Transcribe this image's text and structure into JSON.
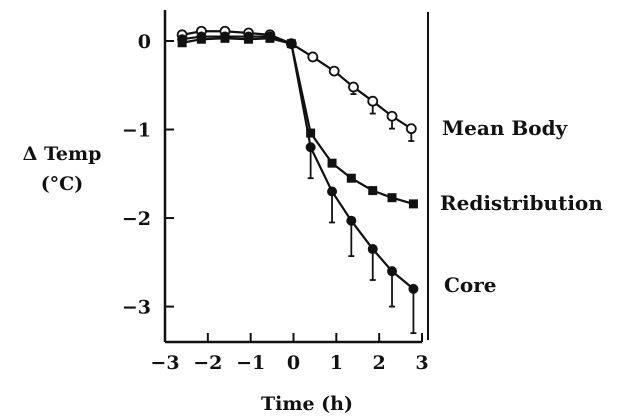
{
  "chart_data": {
    "type": "line",
    "title": "",
    "xlabel": "Time (h)",
    "ylabel": [
      "Δ Temp",
      "(°C)"
    ],
    "xlim": [
      -3,
      3
    ],
    "ylim": [
      -3.4,
      0.35
    ],
    "xticks": [
      -3,
      -2,
      -1,
      0,
      1,
      2,
      3
    ],
    "xtick_labels": [
      "−3",
      "−2",
      "−1",
      "0",
      "1",
      "2",
      "3"
    ],
    "yticks": [
      0,
      -1,
      -2,
      -3
    ],
    "ytick_labels": [
      "0",
      "−1",
      "−2",
      "−3"
    ],
    "grid": false,
    "legend": "direct labels right of plot",
    "series": [
      {
        "name": "Mean Body",
        "marker": "open-circle",
        "x": [
          -2.6,
          -2.15,
          -1.6,
          -1.05,
          -0.55,
          -0.05,
          0.45,
          0.95,
          1.4,
          1.85,
          2.3,
          2.75
        ],
        "y": [
          0.07,
          0.11,
          0.11,
          0.09,
          0.07,
          -0.03,
          -0.18,
          -0.34,
          -0.52,
          -0.68,
          -0.85,
          -0.99
        ],
        "err": [
          0,
          0,
          0,
          0,
          0,
          0,
          0,
          0,
          0.08,
          0.14,
          0.14,
          0.14
        ]
      },
      {
        "name": "Redistribution",
        "marker": "filled-square",
        "x": [
          -2.6,
          -2.15,
          -1.6,
          -1.05,
          -0.55,
          -0.05,
          0.4,
          0.9,
          1.35,
          1.85,
          2.3,
          2.8
        ],
        "y": [
          -0.02,
          0.02,
          0.03,
          0.02,
          0.03,
          -0.03,
          -1.04,
          -1.38,
          -1.55,
          -1.69,
          -1.77,
          -1.84
        ],
        "err": [
          0,
          0,
          0,
          0,
          0,
          0,
          0,
          0,
          0,
          0,
          0,
          0
        ]
      },
      {
        "name": "Core",
        "marker": "filled-circle",
        "x": [
          -2.6,
          -2.15,
          -1.6,
          -1.05,
          -0.55,
          -0.05,
          0.4,
          0.9,
          1.35,
          1.85,
          2.3,
          2.8
        ],
        "y": [
          0.02,
          0.05,
          0.05,
          0.05,
          0.05,
          -0.03,
          -1.2,
          -1.7,
          -2.03,
          -2.35,
          -2.6,
          -2.8
        ],
        "err": [
          0,
          0,
          0,
          0,
          0,
          0,
          0.35,
          0.35,
          0.4,
          0.35,
          0.4,
          0.5
        ]
      }
    ]
  }
}
